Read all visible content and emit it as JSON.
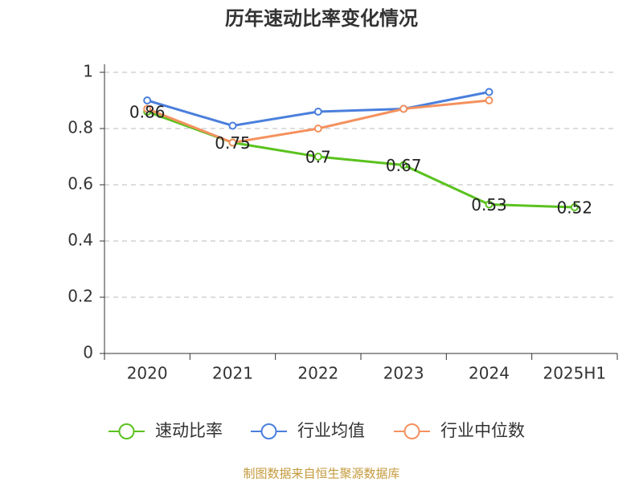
{
  "chart_data": {
    "type": "line",
    "title": "历年速动比率变化情况",
    "categories": [
      "2020",
      "2021",
      "2022",
      "2023",
      "2024",
      "2025H1"
    ],
    "series": [
      {
        "name": "速动比率",
        "color": "#5bc21f",
        "values": [
          0.86,
          0.75,
          0.7,
          0.67,
          0.53,
          0.52
        ]
      },
      {
        "name": "行业均值",
        "color": "#4a7fdc",
        "values": [
          0.9,
          0.81,
          0.86,
          0.87,
          0.93,
          null
        ]
      },
      {
        "name": "行业中位数",
        "color": "#f4915e",
        "values": [
          0.87,
          0.75,
          0.8,
          0.87,
          0.9,
          null
        ]
      }
    ],
    "ylim": [
      0,
      1
    ],
    "yticks": [
      0,
      0.2,
      0.4,
      0.6,
      0.8,
      1
    ],
    "grid": true,
    "legend": "bottom",
    "source": "制图数据来自恒生聚源数据库"
  }
}
